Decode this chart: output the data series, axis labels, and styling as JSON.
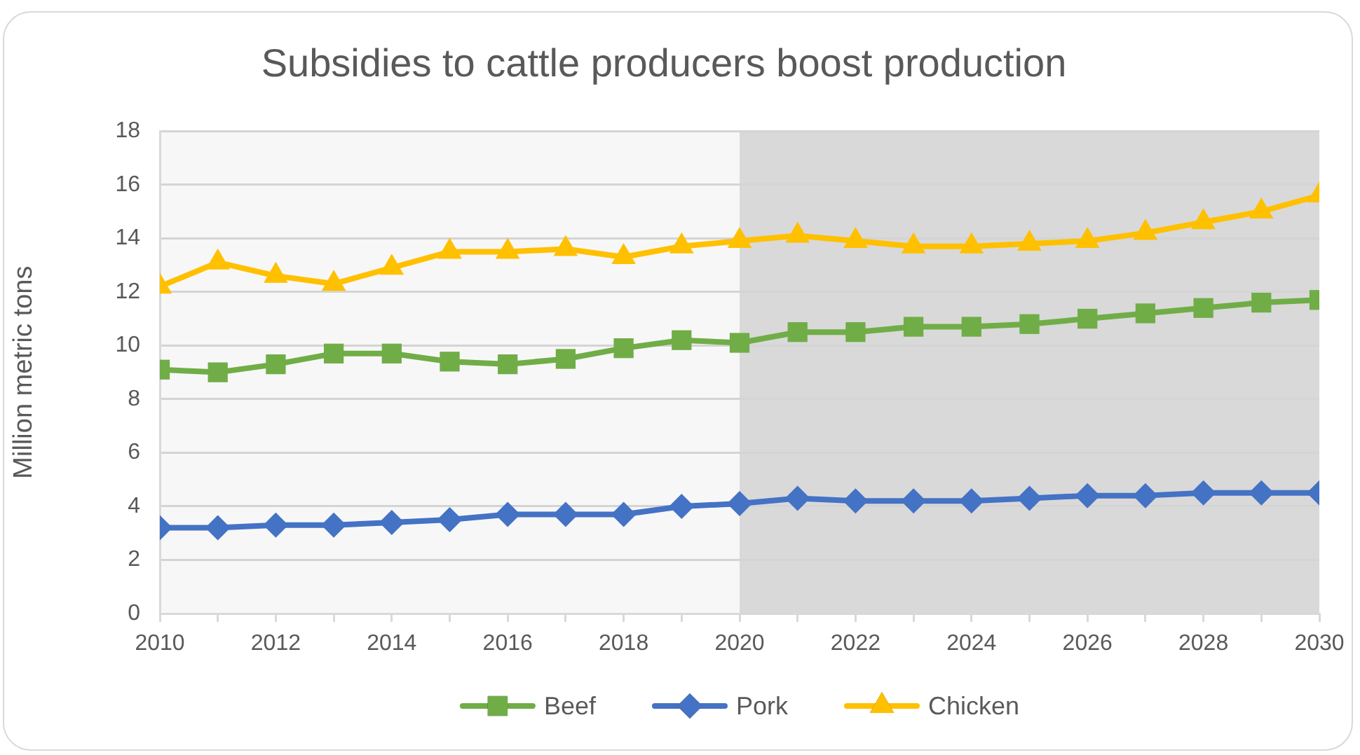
{
  "chart_data": {
    "type": "line",
    "title": "Subsidies to cattle producers boost production",
    "ylabel": "Million metric tons",
    "x": [
      2010,
      2011,
      2012,
      2013,
      2014,
      2015,
      2016,
      2017,
      2018,
      2019,
      2020,
      2021,
      2022,
      2023,
      2024,
      2025,
      2026,
      2027,
      2028,
      2029,
      2030
    ],
    "series": [
      {
        "name": "Beef",
        "color": "#70ad47",
        "marker": "square",
        "values": [
          9.1,
          9.0,
          9.3,
          9.7,
          9.7,
          9.4,
          9.3,
          9.5,
          9.9,
          10.2,
          10.1,
          10.5,
          10.5,
          10.7,
          10.7,
          10.8,
          11.0,
          11.2,
          11.4,
          11.6,
          11.7
        ]
      },
      {
        "name": "Pork",
        "color": "#4472c4",
        "marker": "diamond",
        "values": [
          3.2,
          3.2,
          3.3,
          3.3,
          3.4,
          3.5,
          3.7,
          3.7,
          3.7,
          4.0,
          4.1,
          4.3,
          4.2,
          4.2,
          4.2,
          4.3,
          4.4,
          4.4,
          4.5,
          4.5,
          4.5
        ]
      },
      {
        "name": "Chicken",
        "color": "#ffc000",
        "marker": "triangle",
        "values": [
          12.2,
          13.1,
          12.6,
          12.3,
          12.9,
          13.5,
          13.5,
          13.6,
          13.3,
          13.7,
          13.9,
          14.1,
          13.9,
          13.7,
          13.7,
          13.8,
          13.9,
          14.2,
          14.6,
          15.0,
          15.6
        ]
      }
    ],
    "xlim": [
      2010,
      2030
    ],
    "xticks": [
      2010,
      {
        "value": 2011,
        "label": null
      },
      2012,
      {
        "value": 2013,
        "label": null
      },
      2014,
      {
        "value": 2015,
        "label": null
      },
      2016,
      {
        "value": 2017,
        "label": null
      },
      2018,
      {
        "value": 2019,
        "label": null
      },
      2020,
      {
        "value": 2021,
        "label": null
      },
      2022,
      {
        "value": 2023,
        "label": null
      },
      2024,
      {
        "value": 2025,
        "label": null
      },
      2026,
      {
        "value": 2027,
        "label": null
      },
      2028,
      {
        "value": 2029,
        "label": null
      },
      2030
    ],
    "ylim": [
      0,
      18
    ],
    "yticks": [
      0,
      2,
      4,
      6,
      8,
      10,
      12,
      14,
      16,
      18
    ],
    "bands": [
      {
        "axis": "x",
        "from": 2010,
        "to": 2020,
        "color": "#f7f7f7"
      },
      {
        "axis": "x",
        "from": 2020,
        "to": 2030,
        "color": "#d9d9d9"
      }
    ],
    "grid": "y",
    "legend": "bottom"
  }
}
